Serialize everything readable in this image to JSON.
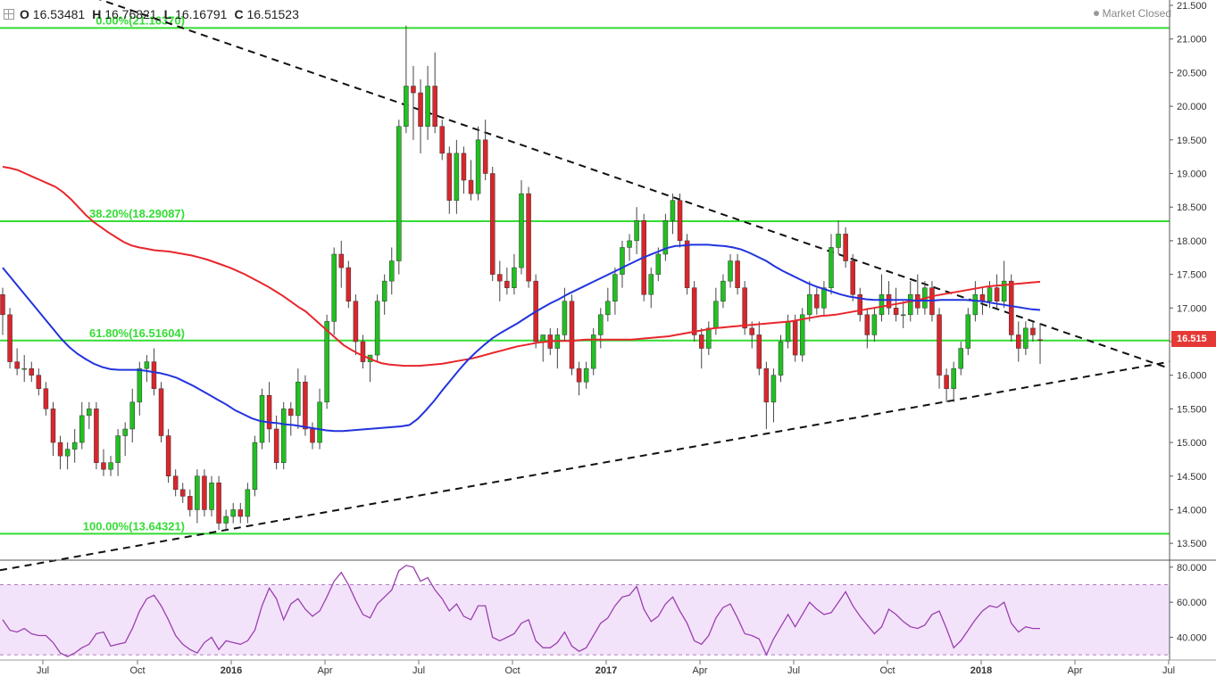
{
  "header": {
    "open_label": "O",
    "open": "16.53481",
    "high_label": "H",
    "high": "16.76821",
    "low_label": "L",
    "low": "16.16791",
    "close_label": "C",
    "close": "16.51523",
    "market_status": "Market Closed",
    "crosshair_icon": "crosshair-icon"
  },
  "last_price_tag": "16.515",
  "colors": {
    "up": "#22c022",
    "down": "#d9262c",
    "fib": "#33dd33",
    "sma_red": "#e8262c",
    "sma_blue": "#2233dd",
    "rsi": "#9b3fb0",
    "rsi_band": "#f3e3fa",
    "tag": "#e53935"
  },
  "chart_data": {
    "type": "candlestick",
    "timeframe": "weekly",
    "x_ticks": [
      "Jul",
      "Oct",
      "2016",
      "Apr",
      "Jul",
      "Oct",
      "2017",
      "Apr",
      "Jul",
      "Oct",
      "2018",
      "Apr",
      "Jul"
    ],
    "y_ticks": [
      "21.500",
      "21.000",
      "20.500",
      "20.000",
      "19.500",
      "19.000",
      "18.500",
      "18.000",
      "17.500",
      "17.000",
      "16.500",
      "16.000",
      "15.500",
      "15.000",
      "14.500",
      "14.000",
      "13.500"
    ],
    "ylim": [
      13.25,
      21.58
    ],
    "fib_levels": [
      {
        "label": "0.00%(21.16370)",
        "value": 21.1637
      },
      {
        "label": "38.20%(18.29087)",
        "value": 18.29087
      },
      {
        "label": "61.80%(16.51604)",
        "value": 16.51604
      },
      {
        "label": "100.00%(13.64321)",
        "value": 13.64321
      }
    ],
    "trendlines": [
      {
        "name": "upper",
        "from": [
          0.0,
          22.1
        ],
        "to": [
          1.0,
          16.1
        ]
      },
      {
        "name": "lower",
        "from": [
          0.0,
          13.1
        ],
        "to": [
          1.0,
          16.2
        ]
      }
    ],
    "candles": [
      [
        17.2,
        17.3,
        16.6,
        16.9
      ],
      [
        16.9,
        17.0,
        16.1,
        16.2
      ],
      [
        16.2,
        16.4,
        16.0,
        16.1
      ],
      [
        16.1,
        16.3,
        15.9,
        16.1
      ],
      [
        16.1,
        16.2,
        15.9,
        16.0
      ],
      [
        16.0,
        16.1,
        15.7,
        15.8
      ],
      [
        15.8,
        15.9,
        15.4,
        15.5
      ],
      [
        15.5,
        15.6,
        14.8,
        15.0
      ],
      [
        15.0,
        15.1,
        14.6,
        14.8
      ],
      [
        14.8,
        15.0,
        14.6,
        14.9
      ],
      [
        14.9,
        15.2,
        14.7,
        15.0
      ],
      [
        15.0,
        15.6,
        14.9,
        15.4
      ],
      [
        15.4,
        15.6,
        15.2,
        15.5
      ],
      [
        15.5,
        15.6,
        14.6,
        14.7
      ],
      [
        14.7,
        14.9,
        14.5,
        14.6
      ],
      [
        14.6,
        14.8,
        14.5,
        14.7
      ],
      [
        14.7,
        15.2,
        14.5,
        15.1
      ],
      [
        15.1,
        15.3,
        14.8,
        15.2
      ],
      [
        15.2,
        15.8,
        15.0,
        15.6
      ],
      [
        15.6,
        16.2,
        15.4,
        16.1
      ],
      [
        16.1,
        16.3,
        15.9,
        16.2
      ],
      [
        16.2,
        16.4,
        15.7,
        15.8
      ],
      [
        15.8,
        15.9,
        15.0,
        15.1
      ],
      [
        15.1,
        15.2,
        14.4,
        14.5
      ],
      [
        14.5,
        14.6,
        14.2,
        14.3
      ],
      [
        14.3,
        14.4,
        14.1,
        14.2
      ],
      [
        14.2,
        14.3,
        13.9,
        14.0
      ],
      [
        14.0,
        14.6,
        13.8,
        14.5
      ],
      [
        14.5,
        14.6,
        13.9,
        14.0
      ],
      [
        14.0,
        14.5,
        13.9,
        14.4
      ],
      [
        14.4,
        14.5,
        13.7,
        13.8
      ],
      [
        13.8,
        14.0,
        13.7,
        13.9
      ],
      [
        13.9,
        14.1,
        13.8,
        14.0
      ],
      [
        14.0,
        14.1,
        13.8,
        13.9
      ],
      [
        13.9,
        14.4,
        13.8,
        14.3
      ],
      [
        14.3,
        15.1,
        14.2,
        15.0
      ],
      [
        15.0,
        15.8,
        14.9,
        15.7
      ],
      [
        15.7,
        15.9,
        15.0,
        15.2
      ],
      [
        15.2,
        15.4,
        14.6,
        14.7
      ],
      [
        14.7,
        15.6,
        14.6,
        15.5
      ],
      [
        15.5,
        15.6,
        15.1,
        15.4
      ],
      [
        15.4,
        16.1,
        15.2,
        15.9
      ],
      [
        15.9,
        16.0,
        15.1,
        15.2
      ],
      [
        15.2,
        15.3,
        14.9,
        15.0
      ],
      [
        15.0,
        15.8,
        14.9,
        15.6
      ],
      [
        15.6,
        16.9,
        15.5,
        16.8
      ],
      [
        16.8,
        17.9,
        16.6,
        17.8
      ],
      [
        17.8,
        18.0,
        17.3,
        17.6
      ],
      [
        17.6,
        17.7,
        17.0,
        17.1
      ],
      [
        17.1,
        17.2,
        16.3,
        16.5
      ],
      [
        16.5,
        16.6,
        16.1,
        16.2
      ],
      [
        16.2,
        16.3,
        15.9,
        16.3
      ],
      [
        16.3,
        17.2,
        16.2,
        17.1
      ],
      [
        17.1,
        17.5,
        16.9,
        17.4
      ],
      [
        17.4,
        17.9,
        17.2,
        17.7
      ],
      [
        17.7,
        19.8,
        17.5,
        19.7
      ],
      [
        19.7,
        21.2,
        19.6,
        20.3
      ],
      [
        20.3,
        20.6,
        19.5,
        20.2
      ],
      [
        20.2,
        20.4,
        19.3,
        19.7
      ],
      [
        19.7,
        20.6,
        19.5,
        20.3
      ],
      [
        20.3,
        20.8,
        19.6,
        19.7
      ],
      [
        19.7,
        19.8,
        19.2,
        19.3
      ],
      [
        19.3,
        19.4,
        18.4,
        18.6
      ],
      [
        18.6,
        19.5,
        18.4,
        19.3
      ],
      [
        19.3,
        19.4,
        18.7,
        18.9
      ],
      [
        18.9,
        19.2,
        18.6,
        18.7
      ],
      [
        18.7,
        19.7,
        18.6,
        19.5
      ],
      [
        19.5,
        19.8,
        18.9,
        19.0
      ],
      [
        19.0,
        19.1,
        17.4,
        17.5
      ],
      [
        17.5,
        17.7,
        17.1,
        17.4
      ],
      [
        17.4,
        17.6,
        17.2,
        17.3
      ],
      [
        17.3,
        17.8,
        17.2,
        17.6
      ],
      [
        17.6,
        18.9,
        17.5,
        18.7
      ],
      [
        18.7,
        18.8,
        17.3,
        17.4
      ],
      [
        17.4,
        17.5,
        16.4,
        16.5
      ],
      [
        16.5,
        16.6,
        16.2,
        16.6
      ],
      [
        16.6,
        16.7,
        16.3,
        16.4
      ],
      [
        16.4,
        16.7,
        16.1,
        16.6
      ],
      [
        16.6,
        17.3,
        16.5,
        17.1
      ],
      [
        17.1,
        17.2,
        16.0,
        16.1
      ],
      [
        16.1,
        16.2,
        15.7,
        15.9
      ],
      [
        15.9,
        16.2,
        15.8,
        16.1
      ],
      [
        16.1,
        16.7,
        16.0,
        16.6
      ],
      [
        16.6,
        17.0,
        16.4,
        16.9
      ],
      [
        16.9,
        17.3,
        16.8,
        17.1
      ],
      [
        17.1,
        17.6,
        16.9,
        17.5
      ],
      [
        17.5,
        18.0,
        17.3,
        17.9
      ],
      [
        17.9,
        18.1,
        17.7,
        18.0
      ],
      [
        18.0,
        18.5,
        17.8,
        18.3
      ],
      [
        18.3,
        18.4,
        17.1,
        17.2
      ],
      [
        17.2,
        17.6,
        17.0,
        17.5
      ],
      [
        17.5,
        17.9,
        17.4,
        17.8
      ],
      [
        17.8,
        18.4,
        17.7,
        18.3
      ],
      [
        18.3,
        18.7,
        18.1,
        18.6
      ],
      [
        18.6,
        18.7,
        17.9,
        18.0
      ],
      [
        18.0,
        18.1,
        17.2,
        17.3
      ],
      [
        17.3,
        17.4,
        16.5,
        16.6
      ],
      [
        16.6,
        16.7,
        16.1,
        16.4
      ],
      [
        16.4,
        16.8,
        16.3,
        16.7
      ],
      [
        16.7,
        17.3,
        16.6,
        17.1
      ],
      [
        17.1,
        17.5,
        17.0,
        17.4
      ],
      [
        17.4,
        17.8,
        17.3,
        17.7
      ],
      [
        17.7,
        17.8,
        17.2,
        17.3
      ],
      [
        17.3,
        17.4,
        16.6,
        16.7
      ],
      [
        16.7,
        16.8,
        16.4,
        16.6
      ],
      [
        16.6,
        16.8,
        16.0,
        16.1
      ],
      [
        16.1,
        16.2,
        15.2,
        15.6
      ],
      [
        15.6,
        16.1,
        15.3,
        16.0
      ],
      [
        16.0,
        16.6,
        15.9,
        16.5
      ],
      [
        16.5,
        16.9,
        16.4,
        16.8
      ],
      [
        16.8,
        16.9,
        16.2,
        16.3
      ],
      [
        16.3,
        17.0,
        16.2,
        16.9
      ],
      [
        16.9,
        17.4,
        16.8,
        17.2
      ],
      [
        17.2,
        17.3,
        16.9,
        17.0
      ],
      [
        17.0,
        17.4,
        16.9,
        17.3
      ],
      [
        17.3,
        18.1,
        17.2,
        17.9
      ],
      [
        17.9,
        18.3,
        17.8,
        18.1
      ],
      [
        18.1,
        18.2,
        17.6,
        17.7
      ],
      [
        17.7,
        17.8,
        17.1,
        17.2
      ],
      [
        17.2,
        17.3,
        16.8,
        16.9
      ],
      [
        16.9,
        17.0,
        16.4,
        16.6
      ],
      [
        16.6,
        17.0,
        16.5,
        16.9
      ],
      [
        16.9,
        17.5,
        16.8,
        17.2
      ],
      [
        17.2,
        17.4,
        16.9,
        17.0
      ],
      [
        17.0,
        17.3,
        16.8,
        16.9
      ],
      [
        16.9,
        17.1,
        16.7,
        16.9
      ],
      [
        16.9,
        17.4,
        16.8,
        17.2
      ],
      [
        17.2,
        17.5,
        16.9,
        17.0
      ],
      [
        17.0,
        17.4,
        16.9,
        17.3
      ],
      [
        17.3,
        17.4,
        16.8,
        16.9
      ],
      [
        16.9,
        17.0,
        15.8,
        16.0
      ],
      [
        16.0,
        16.1,
        15.6,
        15.8
      ],
      [
        15.8,
        16.2,
        15.6,
        16.1
      ],
      [
        16.1,
        16.5,
        16.0,
        16.4
      ],
      [
        16.4,
        17.0,
        16.3,
        16.9
      ],
      [
        16.9,
        17.4,
        16.8,
        17.2
      ],
      [
        17.2,
        17.3,
        16.9,
        17.1
      ],
      [
        17.1,
        17.4,
        17.0,
        17.3
      ],
      [
        17.3,
        17.5,
        17.0,
        17.1
      ],
      [
        17.1,
        17.7,
        17.0,
        17.4
      ],
      [
        17.4,
        17.5,
        16.5,
        16.6
      ],
      [
        16.6,
        16.8,
        16.2,
        16.4
      ],
      [
        16.4,
        16.8,
        16.3,
        16.7
      ],
      [
        16.7,
        16.8,
        16.5,
        16.6
      ],
      [
        16.53,
        16.77,
        16.17,
        16.52
      ]
    ],
    "sma_long": [
      19.1,
      19.08,
      19.05,
      19.0,
      18.95,
      18.9,
      18.85,
      18.8,
      18.72,
      18.62,
      18.5,
      18.38,
      18.28,
      18.2,
      18.12,
      18.05,
      17.98,
      17.93,
      17.9,
      17.88,
      17.86,
      17.85,
      17.84,
      17.82,
      17.8,
      17.78,
      17.75,
      17.72,
      17.68,
      17.64,
      17.6,
      17.55,
      17.5,
      17.44,
      17.38,
      17.32,
      17.25,
      17.18,
      17.1,
      17.02,
      16.95,
      16.85,
      16.75,
      16.65,
      16.55,
      16.45,
      16.38,
      16.32,
      16.27,
      16.22,
      16.18,
      16.16,
      16.15,
      16.14,
      16.14,
      16.14,
      16.15,
      16.16,
      16.17,
      16.19,
      16.21,
      16.23,
      16.25,
      16.28,
      16.31,
      16.34,
      16.37,
      16.4,
      16.43,
      16.45,
      16.47,
      16.49,
      16.5,
      16.51,
      16.51,
      16.51,
      16.52,
      16.53,
      16.53,
      16.53,
      16.53,
      16.53,
      16.53,
      16.53,
      16.54,
      16.55,
      16.56,
      16.57,
      16.58,
      16.6,
      16.62,
      16.64,
      16.66,
      16.68,
      16.7,
      16.71,
      16.72,
      16.73,
      16.74,
      16.75,
      16.76,
      16.77,
      16.78,
      16.79,
      16.8,
      16.82,
      16.84,
      16.86,
      16.88,
      16.89,
      16.9,
      16.92,
      16.94,
      16.96,
      16.98,
      17.0,
      17.02,
      17.04,
      17.06,
      17.08,
      17.1,
      17.12,
      17.15,
      17.18,
      17.2,
      17.22,
      17.24,
      17.26,
      17.28,
      17.3,
      17.32,
      17.33,
      17.34,
      17.35,
      17.36,
      17.37,
      17.38,
      17.39
    ],
    "sma_short": [
      17.6,
      17.45,
      17.3,
      17.15,
      17.0,
      16.85,
      16.7,
      16.55,
      16.42,
      16.32,
      16.24,
      16.17,
      16.12,
      16.09,
      16.08,
      16.08,
      16.08,
      16.07,
      16.05,
      16.03,
      16.0,
      15.96,
      15.9,
      15.84,
      15.77,
      15.7,
      15.63,
      15.56,
      15.48,
      15.42,
      15.36,
      15.32,
      15.3,
      15.29,
      15.27,
      15.26,
      15.24,
      15.22,
      15.2,
      15.18,
      15.17,
      15.17,
      15.18,
      15.19,
      15.2,
      15.21,
      15.22,
      15.23,
      15.24,
      15.26,
      15.35,
      15.48,
      15.62,
      15.78,
      15.93,
      16.08,
      16.22,
      16.34,
      16.45,
      16.55,
      16.63,
      16.7,
      16.77,
      16.85,
      16.93,
      17.0,
      17.07,
      17.13,
      17.2,
      17.26,
      17.32,
      17.38,
      17.44,
      17.5,
      17.56,
      17.62,
      17.68,
      17.74,
      17.79,
      17.84,
      17.89,
      17.92,
      17.93,
      17.94,
      17.94,
      17.94,
      17.93,
      17.92,
      17.9,
      17.87,
      17.82,
      17.76,
      17.7,
      17.62,
      17.55,
      17.49,
      17.43,
      17.37,
      17.32,
      17.28,
      17.24,
      17.2,
      17.17,
      17.15,
      17.13,
      17.12,
      17.12,
      17.12,
      17.12,
      17.12,
      17.11,
      17.11,
      17.11,
      17.12,
      17.12,
      17.12,
      17.12,
      17.11,
      17.1,
      17.08,
      17.06,
      17.04,
      17.02,
      17.0,
      16.98,
      16.97
    ]
  },
  "rsi": {
    "y_ticks": [
      "80.000",
      "60.000",
      "40.000"
    ],
    "ylim": [
      27,
      84
    ],
    "band": [
      30,
      70
    ],
    "values": [
      50,
      44,
      43,
      45,
      42,
      41,
      41,
      37,
      31,
      29,
      31,
      34,
      36,
      42,
      43,
      35,
      36,
      37,
      45,
      55,
      62,
      64,
      58,
      50,
      41,
      36,
      33,
      31,
      37,
      40,
      33,
      38,
      37,
      36,
      38,
      44,
      58,
      68,
      62,
      50,
      59,
      62,
      56,
      52,
      55,
      63,
      72,
      77,
      70,
      61,
      53,
      51,
      59,
      63,
      67,
      78,
      81,
      80,
      72,
      74,
      67,
      62,
      55,
      59,
      52,
      50,
      58,
      58,
      40,
      38,
      40,
      42,
      48,
      50,
      38,
      34,
      34,
      37,
      43,
      35,
      32,
      34,
      41,
      48,
      51,
      58,
      63,
      64,
      69,
      56,
      49,
      52,
      59,
      63,
      55,
      48,
      38,
      36,
      41,
      51,
      57,
      59,
      51,
      42,
      41,
      39,
      30,
      39,
      46,
      53,
      46,
      53,
      60,
      56,
      53,
      54,
      60,
      66,
      58,
      52,
      47,
      42,
      46,
      56,
      53,
      49,
      46,
      45,
      47,
      53,
      55,
      45,
      34,
      38,
      44,
      50,
      55,
      58,
      57,
      60,
      48,
      43,
      46,
      45,
      45
    ]
  }
}
